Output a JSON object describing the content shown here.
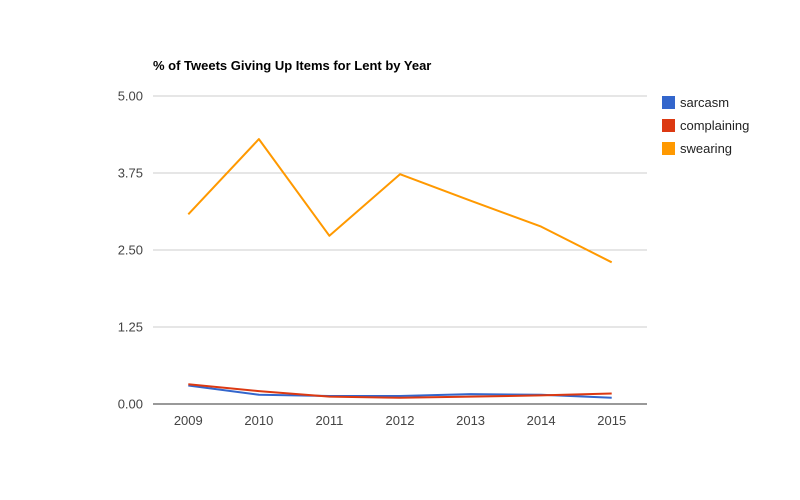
{
  "chart_data": {
    "type": "line",
    "title": "% of Tweets Giving Up Items for Lent by Year",
    "xlabel": "",
    "ylabel": "",
    "x": [
      "2009",
      "2010",
      "2011",
      "2012",
      "2013",
      "2014",
      "2015"
    ],
    "y_ticks": [
      "0.00",
      "1.25",
      "2.50",
      "3.75",
      "5.00"
    ],
    "ylim": [
      0,
      5
    ],
    "grid": true,
    "legend_position": "right",
    "series": [
      {
        "name": "sarcasm",
        "color": "#3366cc",
        "values": [
          0.3,
          0.15,
          0.13,
          0.13,
          0.16,
          0.15,
          0.1
        ]
      },
      {
        "name": "complaining",
        "color": "#dc3912",
        "values": [
          0.32,
          0.21,
          0.12,
          0.1,
          0.12,
          0.14,
          0.17
        ]
      },
      {
        "name": "swearing",
        "color": "#ff9900",
        "values": [
          3.08,
          4.3,
          2.73,
          3.73,
          3.3,
          2.88,
          2.3
        ]
      }
    ]
  }
}
